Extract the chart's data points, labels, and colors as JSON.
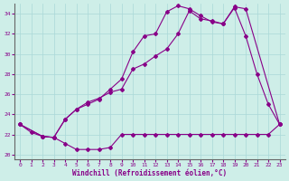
{
  "xlabel": "Windchill (Refroidissement éolien,°C)",
  "bg_color": "#ceeee8",
  "line_color": "#880088",
  "grid_color": "#aad8d8",
  "xlim": [
    -0.5,
    23.5
  ],
  "ylim": [
    19.5,
    35.0
  ],
  "yticks": [
    20,
    22,
    24,
    26,
    28,
    30,
    32,
    34
  ],
  "xticks": [
    0,
    1,
    2,
    3,
    4,
    5,
    6,
    7,
    8,
    9,
    10,
    11,
    12,
    13,
    14,
    15,
    16,
    17,
    18,
    19,
    20,
    21,
    22,
    23
  ],
  "line1_x": [
    0,
    1,
    2,
    3,
    4,
    5,
    6,
    7,
    8,
    9,
    10,
    11,
    12,
    13,
    14,
    15,
    16,
    17,
    18,
    19,
    20,
    21,
    22,
    23
  ],
  "line1_y": [
    23.0,
    22.2,
    21.8,
    21.7,
    21.1,
    20.5,
    20.5,
    20.5,
    20.7,
    22.0,
    22.0,
    22.0,
    22.0,
    22.0,
    22.0,
    22.0,
    22.0,
    22.0,
    22.0,
    22.0,
    22.0,
    22.0,
    22.0,
    23.0
  ],
  "line2_x": [
    0,
    2,
    3,
    4,
    5,
    6,
    7,
    8,
    9,
    10,
    11,
    12,
    13,
    14,
    15,
    16,
    17,
    18,
    19,
    20,
    21,
    22,
    23
  ],
  "line2_y": [
    23.0,
    21.8,
    21.7,
    23.5,
    24.5,
    25.2,
    25.6,
    26.2,
    26.5,
    28.5,
    29.0,
    29.8,
    30.5,
    32.0,
    34.3,
    33.5,
    33.3,
    33.0,
    34.6,
    31.8,
    28.0,
    25.0,
    23.0
  ],
  "line3_x": [
    0,
    2,
    3,
    4,
    5,
    6,
    7,
    8,
    9,
    10,
    11,
    12,
    13,
    14,
    15,
    16,
    17,
    18,
    19,
    20,
    23
  ],
  "line3_y": [
    23.0,
    21.8,
    21.7,
    23.5,
    24.5,
    25.0,
    25.5,
    26.5,
    27.5,
    30.2,
    31.8,
    32.0,
    34.2,
    34.8,
    34.5,
    33.8,
    33.2,
    33.0,
    34.7,
    34.5,
    23.0
  ]
}
